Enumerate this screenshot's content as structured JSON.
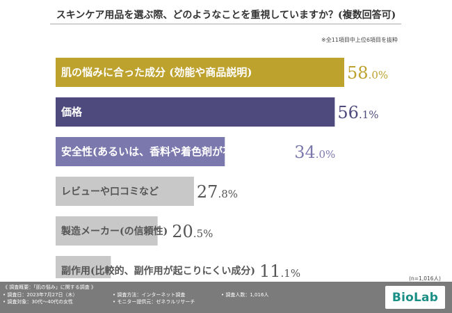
{
  "chart_data": {
    "type": "bar",
    "orientation": "horizontal",
    "title": "スキンケア用品を選ぶ際、どのようなことを重視していますか？(複数回答可)",
    "note": "※全11項目中上位6項目を抜粋",
    "categories": [
      "肌の悩みに合った成分 (効能や商品説明)",
      "価格",
      "安全性(あるいは、香料や着色剤が不使用なもの)",
      "レビューや口コミなど",
      "製造メーカー(の信頼性)",
      "副作用(比較的、副作用が起こりにくい成分)"
    ],
    "values": [
      58.0,
      56.1,
      34.0,
      27.8,
      20.5,
      11.1
    ],
    "value_labels": [
      {
        "int": "58",
        "dec": ".0%"
      },
      {
        "int": "56",
        "dec": ".1%"
      },
      {
        "int": "34",
        "dec": ".0%"
      },
      {
        "int": "27",
        "dec": ".8%"
      },
      {
        "int": "20",
        "dec": ".5%"
      },
      {
        "int": "11",
        "dec": ".1%"
      }
    ],
    "colors": [
      "#bda22e",
      "#4e4a7e",
      "#7b78ad",
      "#c8c8c8",
      "#c8c8c8",
      "#c8c8c8"
    ],
    "label_colors": [
      "#ffffff",
      "#ffffff",
      "#ffffff",
      "#555555",
      "#555555",
      "#555555"
    ],
    "value_colors": [
      "#bda22e",
      "#4e4a7e",
      "#7b78ad",
      "#555555",
      "#555555",
      "#555555"
    ],
    "xlim": [
      0,
      100
    ],
    "grid": false,
    "sample_size": "(n=1,016人)"
  },
  "footer": {
    "heading": "《 調査概要：「肌の悩み」に関する調査 》",
    "col1": [
      "• 調査日：2023年7月27日（木）",
      "• 調査対象：30代〜40代の女性"
    ],
    "col2": [
      "• 調査方法：インターネット調査",
      "• モニター提供元：ゼネラルリサーチ"
    ],
    "col3": [
      "• 調査人数：1,016人"
    ],
    "logo_text": "BioLab"
  }
}
